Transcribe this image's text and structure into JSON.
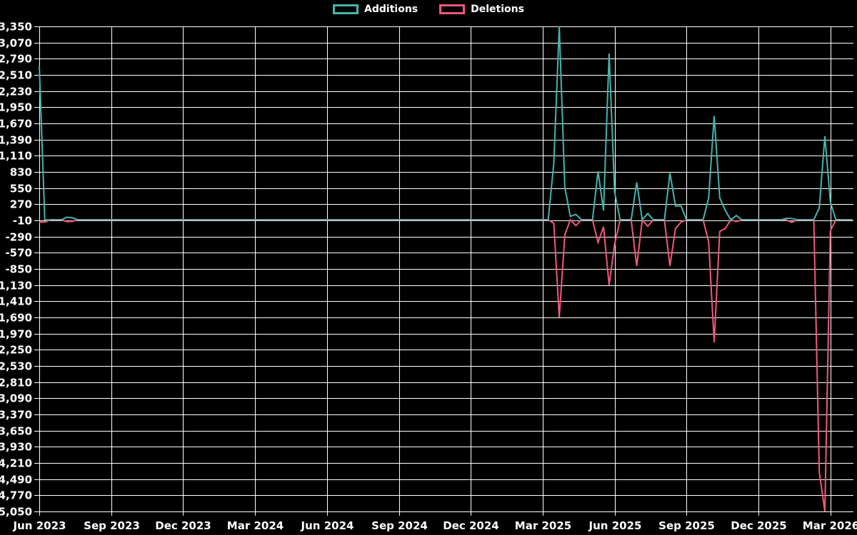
{
  "chart_data": {
    "type": "line",
    "title": "",
    "legend_position": "top-center",
    "background_color": "#000000",
    "grid": {
      "show": true,
      "color": "#ffffff"
    },
    "text_color": "#ffffff",
    "baseline_overlap_color": "#8fa8b3",
    "series": [
      {
        "name": "Additions",
        "color": "#44b5ac"
      },
      {
        "name": "Deletions",
        "color": "#f0597c"
      }
    ],
    "y_axis": {
      "min": -5050,
      "max": 3350,
      "tick_step": 280,
      "tick_labels": [
        "3,350",
        "3,070",
        "2,790",
        "2,510",
        "2,230",
        "1,950",
        "1,670",
        "1,390",
        "1,110",
        "830",
        "550",
        "270",
        "-10",
        "-290",
        "-570",
        "-850",
        "-1,130",
        "-1,410",
        "-1,690",
        "-1,970",
        "-2,250",
        "-2,530",
        "-2,810",
        "-3,090",
        "-3,370",
        "-3,650",
        "-3,930",
        "-4,210",
        "-4,490",
        "-4,770",
        "-5,050"
      ]
    },
    "x_axis": {
      "tick_labels": [
        "Jun 2023",
        "Sep 2023",
        "Dec 2023",
        "Mar 2024",
        "Jun 2024",
        "Sep 2024",
        "Dec 2024",
        "Mar 2025",
        "Jun 2025",
        "Sep 2025",
        "Dec 2025",
        "Mar 2026"
      ],
      "weeks_total": 148,
      "weeks_per_quarter": 13
    },
    "default_week_value": {
      "additions": 0,
      "deletions": 0
    },
    "weekly_points": [
      {
        "week": 0,
        "date": "2023-06-04",
        "additions": 2670,
        "deletions": -40
      },
      {
        "week": 1,
        "date": "2023-06-11",
        "additions": 0,
        "deletions": -40
      },
      {
        "week": 5,
        "date": "2023-07-09",
        "additions": 45,
        "deletions": -30
      },
      {
        "week": 6,
        "date": "2023-07-16",
        "additions": 35,
        "deletions": -25
      },
      {
        "week": 93,
        "date": "2025-03-16",
        "additions": 970,
        "deletions": -60
      },
      {
        "week": 94,
        "date": "2025-03-23",
        "additions": 3350,
        "deletions": -1690
      },
      {
        "week": 95,
        "date": "2025-03-30",
        "additions": 560,
        "deletions": -260
      },
      {
        "week": 96,
        "date": "2025-04-06",
        "additions": 60,
        "deletions": 0
      },
      {
        "week": 97,
        "date": "2025-04-13",
        "additions": 95,
        "deletions": -100
      },
      {
        "week": 101,
        "date": "2025-05-11",
        "additions": 840,
        "deletions": -390
      },
      {
        "week": 102,
        "date": "2025-05-18",
        "additions": 160,
        "deletions": -120
      },
      {
        "week": 103,
        "date": "2025-05-25",
        "additions": 2880,
        "deletions": -1130
      },
      {
        "week": 104,
        "date": "2025-06-01",
        "additions": 480,
        "deletions": -420
      },
      {
        "week": 108,
        "date": "2025-06-29",
        "additions": 650,
        "deletions": -800
      },
      {
        "week": 110,
        "date": "2025-07-13",
        "additions": 110,
        "deletions": -110
      },
      {
        "week": 114,
        "date": "2025-08-10",
        "additions": 810,
        "deletions": -800
      },
      {
        "week": 115,
        "date": "2025-08-17",
        "additions": 240,
        "deletions": -150
      },
      {
        "week": 116,
        "date": "2025-08-24",
        "additions": 240,
        "deletions": -40
      },
      {
        "week": 121,
        "date": "2025-09-28",
        "additions": 380,
        "deletions": -380
      },
      {
        "week": 122,
        "date": "2025-10-05",
        "additions": 1800,
        "deletions": -2120
      },
      {
        "week": 123,
        "date": "2025-10-12",
        "additions": 380,
        "deletions": -200
      },
      {
        "week": 124,
        "date": "2025-10-19",
        "additions": 165,
        "deletions": -150
      },
      {
        "week": 126,
        "date": "2025-11-02",
        "additions": 75,
        "deletions": -30
      },
      {
        "week": 135,
        "date": "2026-01-04",
        "additions": 25,
        "deletions": 0
      },
      {
        "week": 136,
        "date": "2026-01-11",
        "additions": 25,
        "deletions": -45
      },
      {
        "week": 141,
        "date": "2026-02-15",
        "additions": 210,
        "deletions": -4370
      },
      {
        "week": 142,
        "date": "2026-02-22",
        "additions": 1450,
        "deletions": -5050
      },
      {
        "week": 143,
        "date": "2026-03-01",
        "additions": 310,
        "deletions": -190
      }
    ]
  }
}
